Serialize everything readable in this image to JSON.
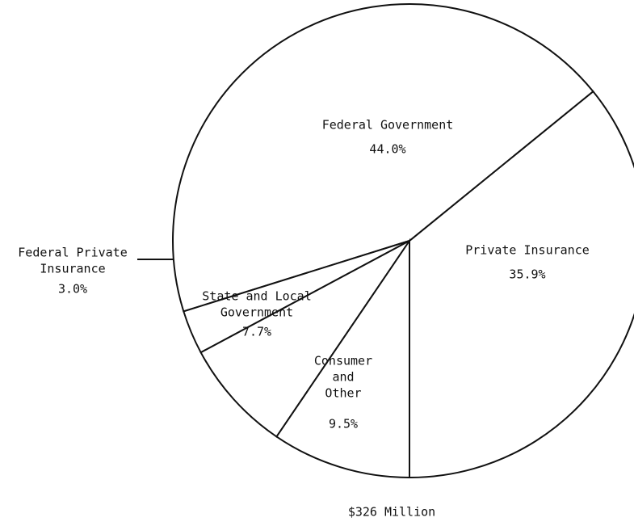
{
  "chart_data": {
    "type": "pie",
    "categories": [
      [
        "Private Insurance"
      ],
      [
        "Federal Government"
      ],
      [
        "Federal Private",
        "Insurance"
      ],
      [
        "State and Local",
        "Government"
      ],
      [
        "Consumer",
        "and",
        "Other"
      ]
    ],
    "values": [
      35.9,
      44.0,
      3.0,
      7.7,
      9.5
    ],
    "value_labels": [
      "35.9%",
      "44.0%",
      "3.0%",
      "7.7%",
      "9.5%"
    ],
    "annotation": "$326 Million"
  }
}
